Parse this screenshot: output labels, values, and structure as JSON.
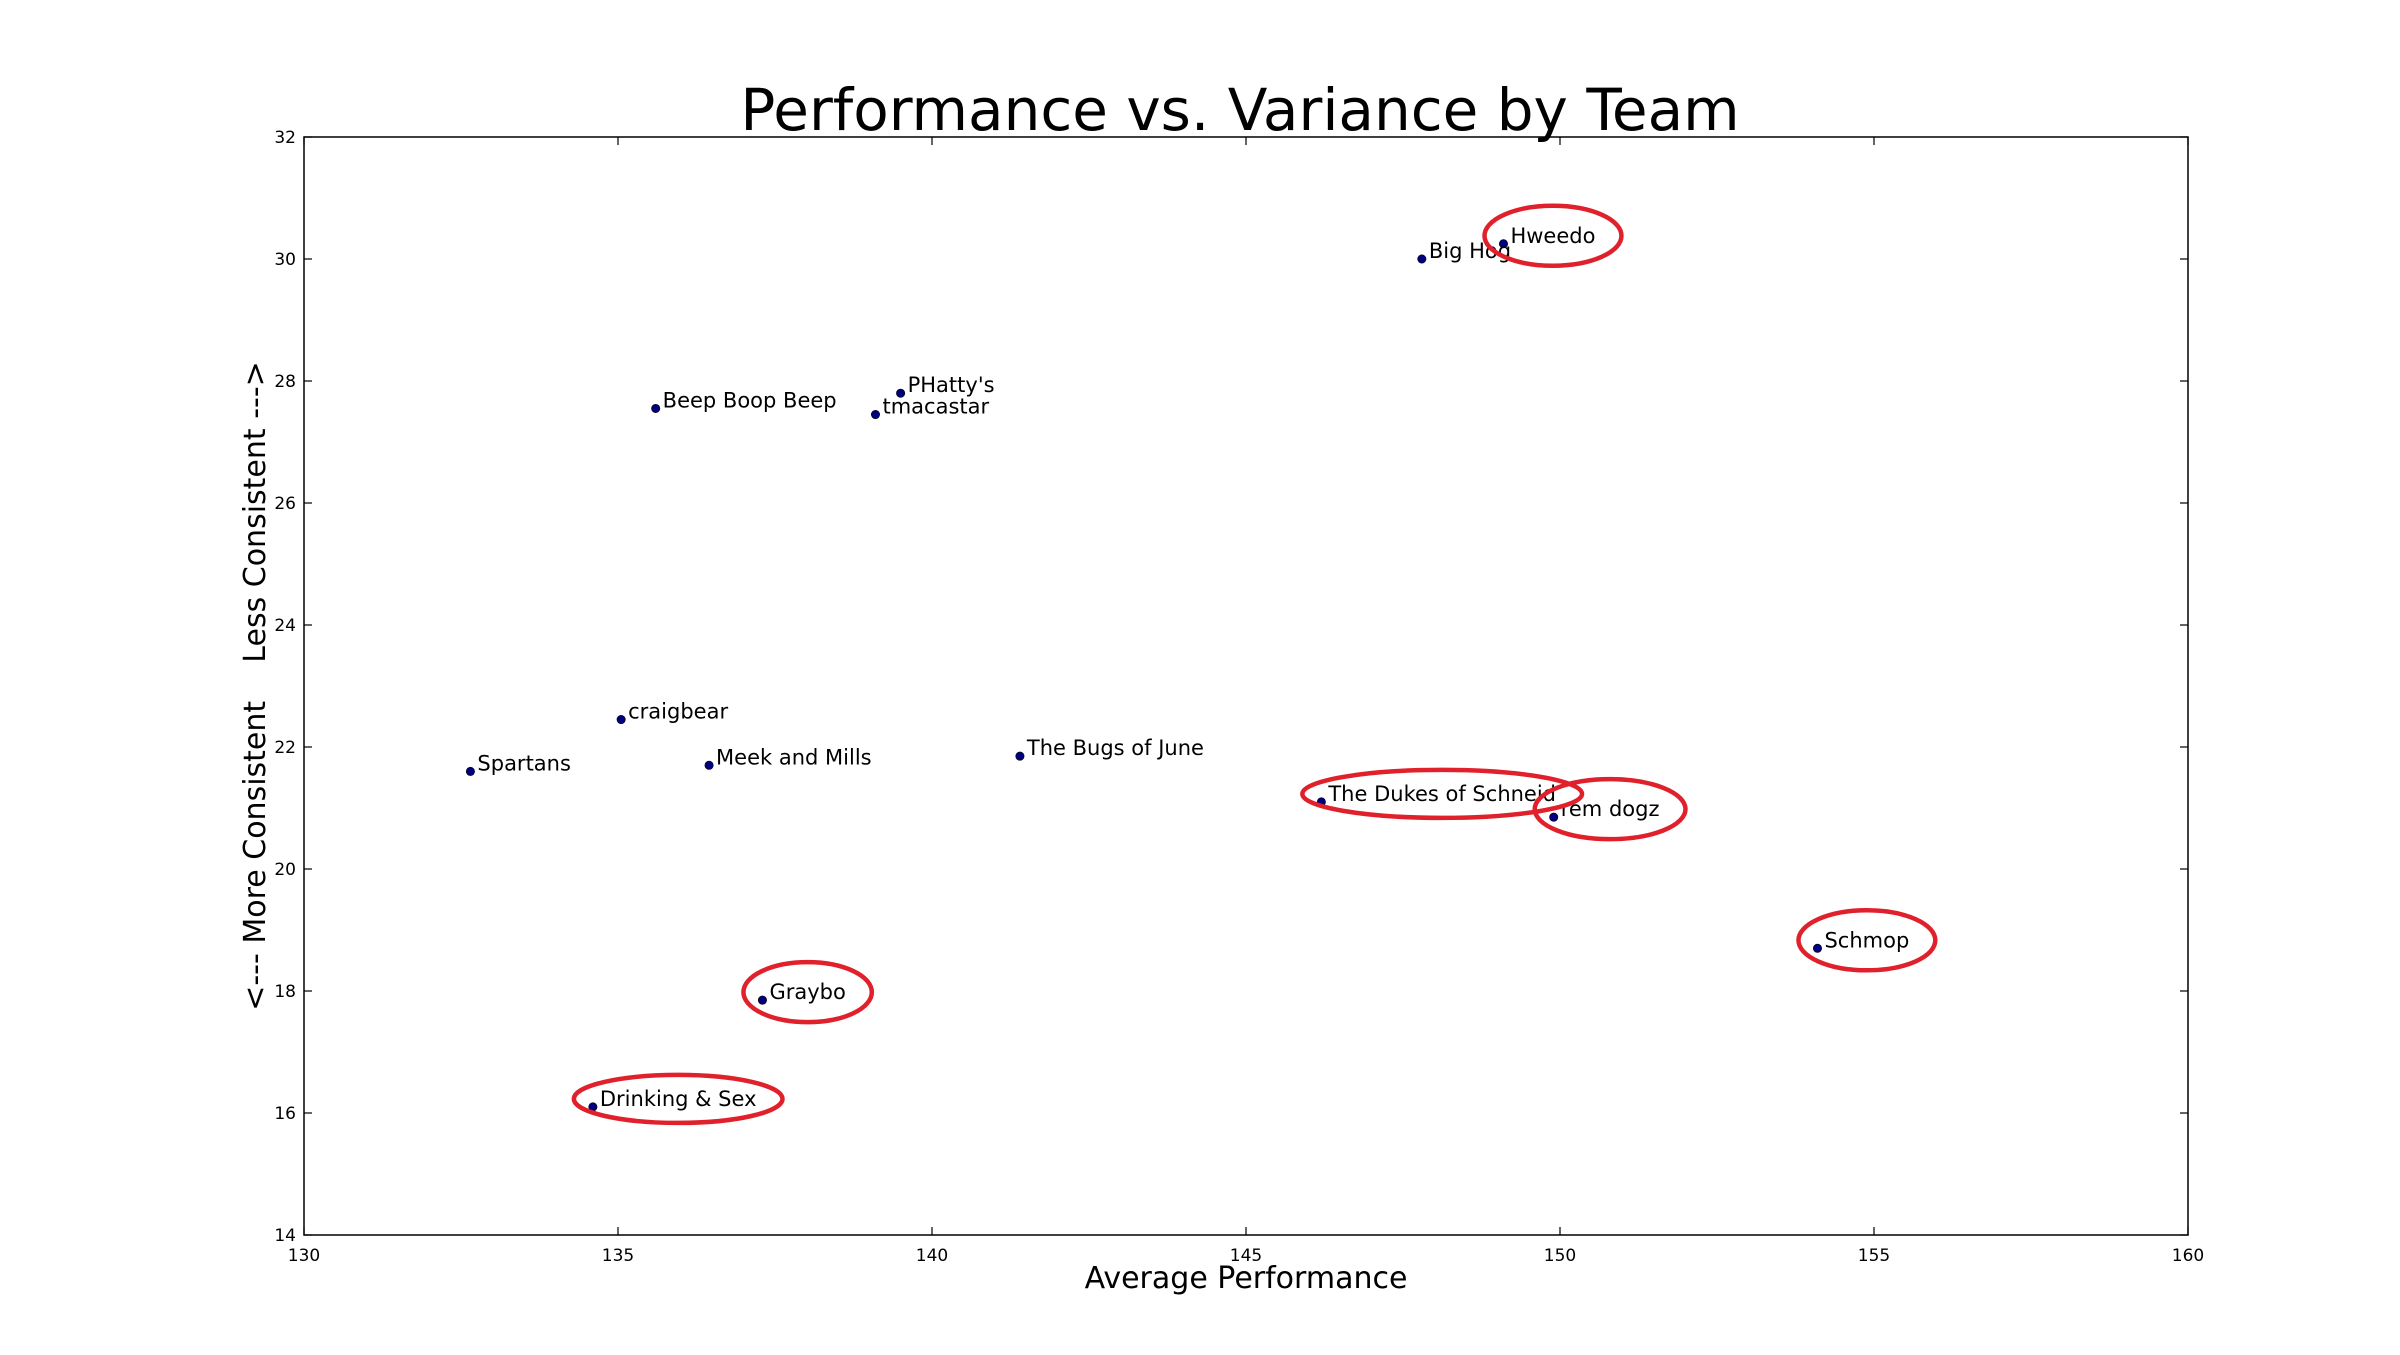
{
  "chart_data": {
    "type": "scatter",
    "title": "Performance vs. Variance by Team",
    "xlabel": "Average Performance",
    "ylabel": "<--- More Consistent    Less Consistent --->",
    "xlim": [
      130,
      160
    ],
    "ylim": [
      14,
      32
    ],
    "xticks": [
      130,
      135,
      140,
      145,
      150,
      155,
      160
    ],
    "yticks": [
      14,
      16,
      18,
      20,
      22,
      24,
      26,
      28,
      30,
      32
    ],
    "grid": false,
    "point_color": "#00007f",
    "highlight_color": "#e0202a",
    "points": [
      {
        "label": "Hweedo",
        "x": 149.1,
        "y": 30.25,
        "highlighted": true
      },
      {
        "label": "Big Hog",
        "x": 147.8,
        "y": 30.0,
        "highlighted": false
      },
      {
        "label": "PHatty's",
        "x": 139.5,
        "y": 27.8,
        "highlighted": false
      },
      {
        "label": "Beep Boop Beep",
        "x": 135.6,
        "y": 27.55,
        "highlighted": false
      },
      {
        "label": "tmacastar",
        "x": 139.1,
        "y": 27.45,
        "highlighted": false
      },
      {
        "label": "craigbear",
        "x": 135.05,
        "y": 22.45,
        "highlighted": false
      },
      {
        "label": "The Bugs of June",
        "x": 141.4,
        "y": 21.85,
        "highlighted": false
      },
      {
        "label": "Meek and Mills",
        "x": 136.45,
        "y": 21.7,
        "highlighted": false
      },
      {
        "label": "Spartans",
        "x": 132.65,
        "y": 21.6,
        "highlighted": false
      },
      {
        "label": "The Dukes of Schneid",
        "x": 146.2,
        "y": 21.1,
        "highlighted": true
      },
      {
        "label": "rem dogz",
        "x": 149.9,
        "y": 20.85,
        "highlighted": true
      },
      {
        "label": "Schmop",
        "x": 154.1,
        "y": 18.7,
        "highlighted": true
      },
      {
        "label": "Graybo",
        "x": 137.3,
        "y": 17.85,
        "highlighted": true
      },
      {
        "label": "Drinking & Sex",
        "x": 134.6,
        "y": 16.1,
        "highlighted": true
      }
    ]
  }
}
